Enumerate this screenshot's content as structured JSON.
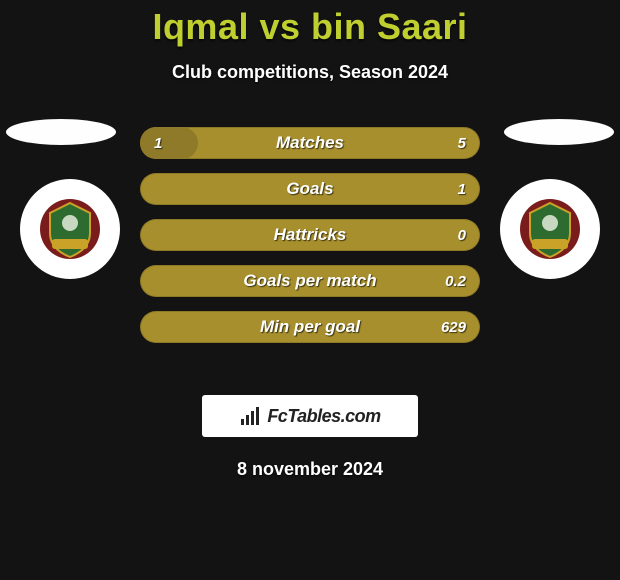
{
  "header": {
    "title": "Iqmal vs bin Saari",
    "subtitle": "Club competitions, Season 2024",
    "accent_color": "#bfcf30"
  },
  "players": {
    "left_badge_bg": "#ffffff",
    "right_badge_bg": "#ffffff",
    "crest_colors": {
      "outer": "#7a1c1c",
      "inner": "#2e6b2e",
      "ribbon": "#c9a227"
    }
  },
  "stats": {
    "bar_bg": "#a78f2d",
    "bar_fill": "#8e7a28",
    "rows": [
      {
        "label": "Matches",
        "left": "1",
        "right": "5",
        "fill_pct": 17
      },
      {
        "label": "Goals",
        "left": "",
        "right": "1",
        "fill_pct": 0
      },
      {
        "label": "Hattricks",
        "left": "",
        "right": "0",
        "fill_pct": 0
      },
      {
        "label": "Goals per match",
        "left": "",
        "right": "0.2",
        "fill_pct": 0
      },
      {
        "label": "Min per goal",
        "left": "",
        "right": "629",
        "fill_pct": 0
      }
    ]
  },
  "footer": {
    "brand": "FcTables.com",
    "date": "8 november 2024"
  }
}
